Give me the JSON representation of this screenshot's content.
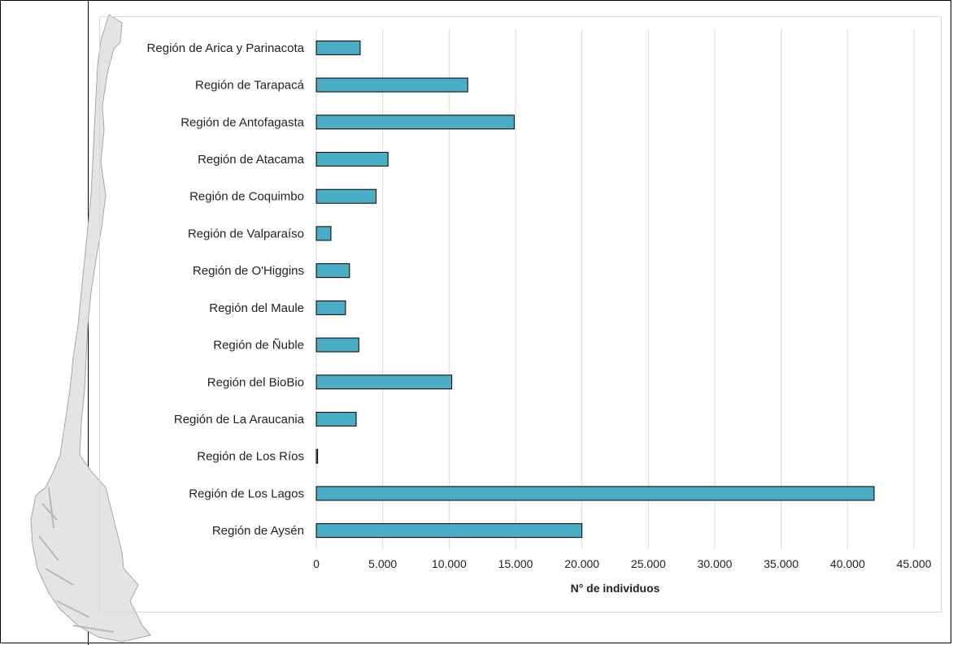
{
  "chart_data": {
    "type": "bar",
    "orientation": "horizontal",
    "categories": [
      "Región de Arica y Parinacota",
      "Región de Tarapacá",
      "Región de Antofagasta",
      "Región de Atacama",
      "Región de Coquimbo",
      "Región de Valparaíso",
      "Región de O'Higgins",
      "Región del Maule",
      "Región de Ñuble",
      "Región del BioBio",
      "Región de La Araucania",
      "Región de Los Ríos",
      "Región de Los Lagos",
      "Región de Aysén"
    ],
    "values": [
      3300,
      11400,
      14900,
      5400,
      4500,
      1100,
      2500,
      2200,
      3200,
      10200,
      3000,
      100,
      42000,
      20000
    ],
    "xlabel": "N° de individuos",
    "xlim": [
      0,
      45000
    ],
    "xticks": [
      0,
      5000,
      10000,
      15000,
      20000,
      25000,
      30000,
      35000,
      40000,
      45000
    ],
    "xtick_labels": [
      "0",
      "5.000",
      "10.000",
      "15.000",
      "20.000",
      "25.000",
      "30.000",
      "35.000",
      "40.000",
      "45.000"
    ],
    "grid": "vertical",
    "bar_color": "#4bacc6",
    "bar_edge_color": "#000000",
    "background_image": "chile-map-silhouette"
  }
}
